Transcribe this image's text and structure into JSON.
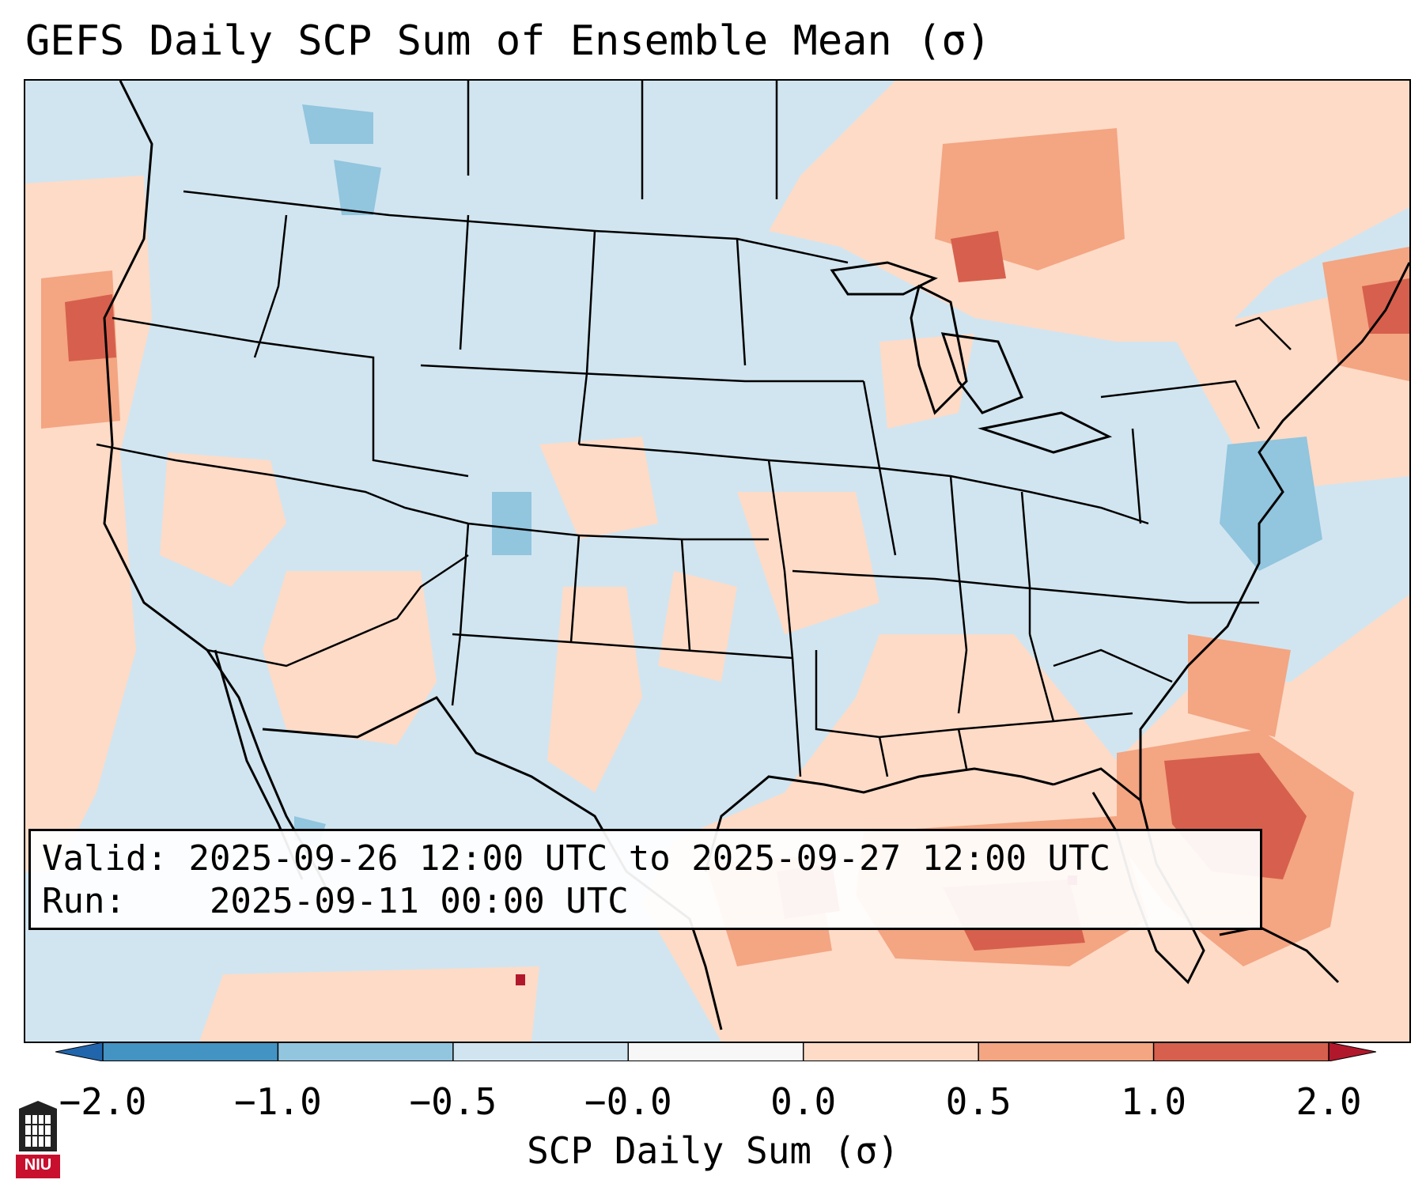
{
  "title": "GEFS Daily SCP Sum of Ensemble Mean (σ)",
  "info": {
    "valid_label": "Valid:",
    "valid_value": "2025-09-26 12:00 UTC to 2025-09-27 12:00 UTC",
    "run_label": "Run:",
    "run_value": "2025-09-11 00:00 UTC"
  },
  "colorbar": {
    "label": "SCP Daily Sum (σ)",
    "ticks": [
      "−2.0",
      "−1.0",
      "−0.5",
      "−0.0",
      "0.0",
      "0.5",
      "1.0",
      "2.0"
    ],
    "bins": [
      {
        "color": "#4393c3"
      },
      {
        "color": "#92c5de"
      },
      {
        "color": "#d1e5f0"
      },
      {
        "color": "#f7f7f7"
      },
      {
        "color": "#fddbc7"
      },
      {
        "color": "#f4a582"
      },
      {
        "color": "#d6604d"
      }
    ],
    "under_color": "#2166ac",
    "over_color": "#b2182b"
  },
  "map": {
    "background_color": "#d1e5f0",
    "overlay_note": "SCP anomaly field over contiguous United States"
  },
  "logo": {
    "text": "NIU",
    "color": "#c8102e"
  }
}
